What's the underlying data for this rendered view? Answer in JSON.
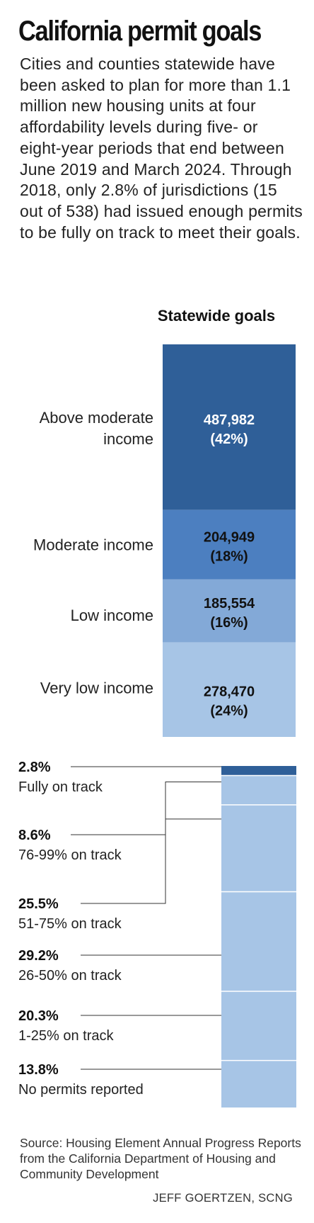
{
  "title": "California permit goals",
  "intro": "Cities and counties statewide have been asked to plan for more than 1.1 million new housing units at four affordability levels during five- or eight-year periods that end between June 2019 and March 2024. Through 2018, only 2.8% of jurisdictions (15 out of 538) had issued enough permits to be fully on track to meet their goals.",
  "source": "Source: Housing Element Annual Progress Reports from the California Department of Housing and Community Development",
  "credit": "JEFF GOERTZEN, SCNG",
  "chart_data": [
    {
      "type": "bar",
      "stacked": true,
      "title": "Statewide goals",
      "categories": [
        "Above moderate income",
        "Moderate income",
        "Low income",
        "Very low income"
      ],
      "values": [
        487982,
        204949,
        185554,
        278470
      ],
      "value_labels": [
        "487,982",
        "204,949",
        "185,554",
        "278,470"
      ],
      "percent_labels": [
        "(42%)",
        "(18%)",
        "(16%)",
        "(24%)"
      ],
      "colors": [
        "#2f5f98",
        "#4c7fc0",
        "#83a9d7",
        "#a7c5e6"
      ],
      "label_colors": [
        "#ffffff",
        "#111111",
        "#111111",
        "#111111"
      ]
    },
    {
      "type": "bar",
      "stacked": true,
      "categories": [
        "Fully on track",
        "76-99% on track",
        "51-75% on track",
        "26-50% on track",
        "1-25% on track",
        "No permits reported"
      ],
      "values": [
        2.8,
        8.6,
        25.5,
        29.2,
        20.3,
        13.8
      ],
      "value_labels": [
        "2.8%",
        "8.6%",
        "25.5%",
        "29.2%",
        "20.3%",
        "13.8%"
      ],
      "colors": [
        "#2f5f98",
        "#a7c5e6",
        "#a7c5e6",
        "#a7c5e6",
        "#a7c5e6",
        "#a7c5e6"
      ]
    }
  ]
}
